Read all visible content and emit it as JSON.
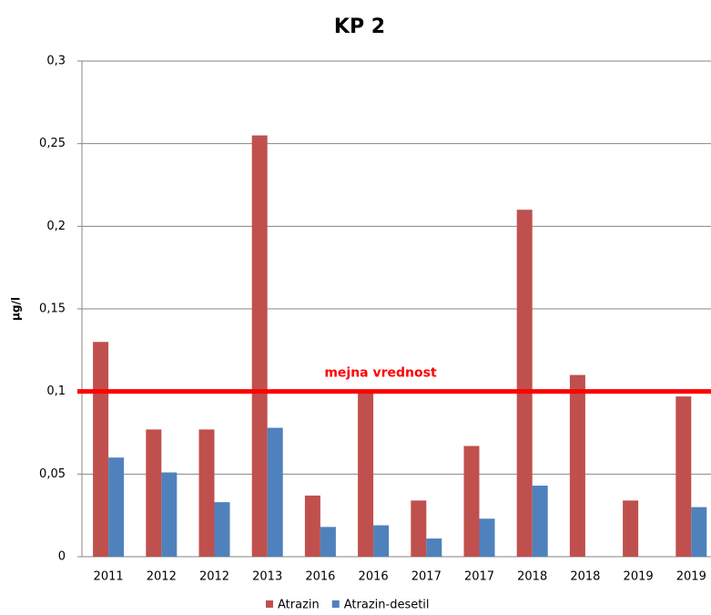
{
  "chart_data": {
    "type": "bar",
    "title": "KP 2",
    "y_label": "µg/l",
    "categories": [
      "2011",
      "2012",
      "2012",
      "2013",
      "2016",
      "2016",
      "2017",
      "2017",
      "2018",
      "2018",
      "2019",
      "2019"
    ],
    "series": [
      {
        "name": "Atrazin",
        "color": "#c0504d",
        "values": [
          0.13,
          0.077,
          0.077,
          0.255,
          0.037,
          0.1,
          0.034,
          0.067,
          0.21,
          0.11,
          0.034,
          0.097
        ]
      },
      {
        "name": "Atrazin-desetil",
        "color": "#4f81bd",
        "values": [
          0.06,
          0.051,
          0.033,
          0.078,
          0.018,
          0.019,
          0.011,
          0.023,
          0.043,
          null,
          null,
          0.03
        ]
      }
    ],
    "ylim": [
      0,
      0.3
    ],
    "yticks": [
      0,
      {
        "value": 0.05,
        "label": "0,05"
      },
      {
        "value": 0.1,
        "label": "0,1"
      },
      {
        "value": 0.15,
        "label": "0,15"
      },
      {
        "value": 0.2,
        "label": "0,2"
      },
      {
        "value": 0.25,
        "label": "0,25"
      },
      {
        "value": 0.3,
        "label": "0,3"
      }
    ],
    "grid": true,
    "reference_line": {
      "value": 0.1,
      "label": "mejna vrednost",
      "color": "#ff0000"
    },
    "legend": "bottom"
  }
}
